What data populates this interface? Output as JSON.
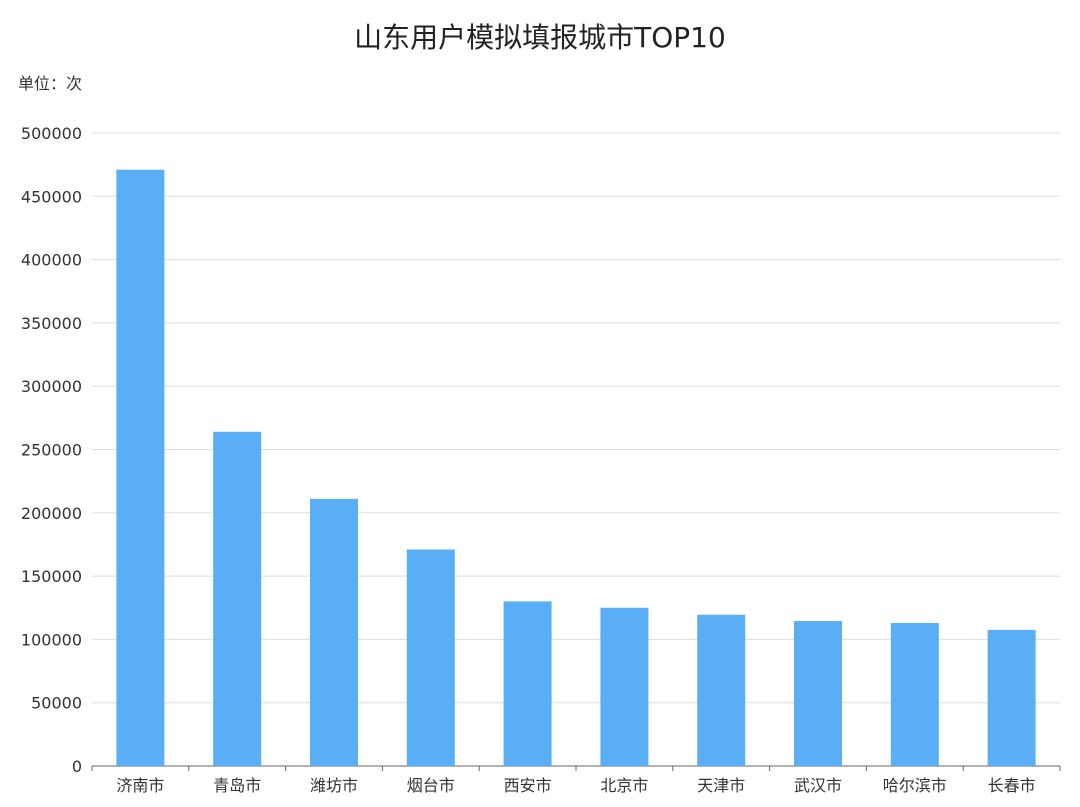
{
  "chart_data": {
    "type": "bar",
    "title": "山东用户模拟填报城市TOP10",
    "unit_label": "单位：次",
    "categories": [
      "济南市",
      "青岛市",
      "潍坊市",
      "烟台市",
      "西安市",
      "北京市",
      "天津市",
      "武汉市",
      "哈尔滨市",
      "长春市"
    ],
    "values": [
      471000,
      264000,
      211000,
      171000,
      130000,
      125000,
      119500,
      114500,
      113000,
      107500
    ],
    "ylim": [
      0,
      500000
    ],
    "yticks": [
      "0",
      "50000",
      "100000",
      "150000",
      "200000",
      "250000",
      "300000",
      "350000",
      "400000",
      "450000",
      "500000"
    ],
    "grid": true,
    "bar_color": "#5aaef5",
    "grid_color": "#dddddd",
    "axis_color": "#666666"
  }
}
